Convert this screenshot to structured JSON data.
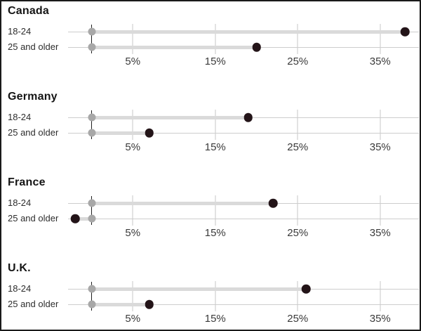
{
  "chart_data": {
    "type": "dumbbell",
    "orientation": "horizontal",
    "x_axis": {
      "tick_values": [
        5,
        15,
        25,
        35
      ],
      "tick_labels": [
        "5%",
        "15%",
        "25%",
        "35%"
      ],
      "xlim": [
        -3,
        40
      ],
      "unit": "%",
      "grid": true,
      "zero_baseline_marked": true
    },
    "panels": [
      {
        "title": "Canada",
        "rows": [
          {
            "label": "18-24",
            "start": 0,
            "end": 38
          },
          {
            "label": "25 and older",
            "start": 0,
            "end": 20
          }
        ]
      },
      {
        "title": "Germany",
        "rows": [
          {
            "label": "18-24",
            "start": 0,
            "end": 19
          },
          {
            "label": "25 and older",
            "start": 0,
            "end": 7
          }
        ]
      },
      {
        "title": "France",
        "rows": [
          {
            "label": "18-24",
            "start": 0,
            "end": 22
          },
          {
            "label": "25 and older",
            "start": 0,
            "end": -2
          }
        ]
      },
      {
        "title": "U.K.",
        "rows": [
          {
            "label": "18-24",
            "start": 0,
            "end": 26
          },
          {
            "label": "25 and older",
            "start": 0,
            "end": 7
          }
        ]
      }
    ],
    "colors": {
      "start_dot": "#a8a8a8",
      "end_dot": "#231418",
      "connector": "#dadada",
      "gridline": "#c7c7c7",
      "row_line": "#cdcdcd",
      "zero_line": "#1f1f1f",
      "title_text": "#141414",
      "tick_text": "#3a3a3a"
    }
  }
}
